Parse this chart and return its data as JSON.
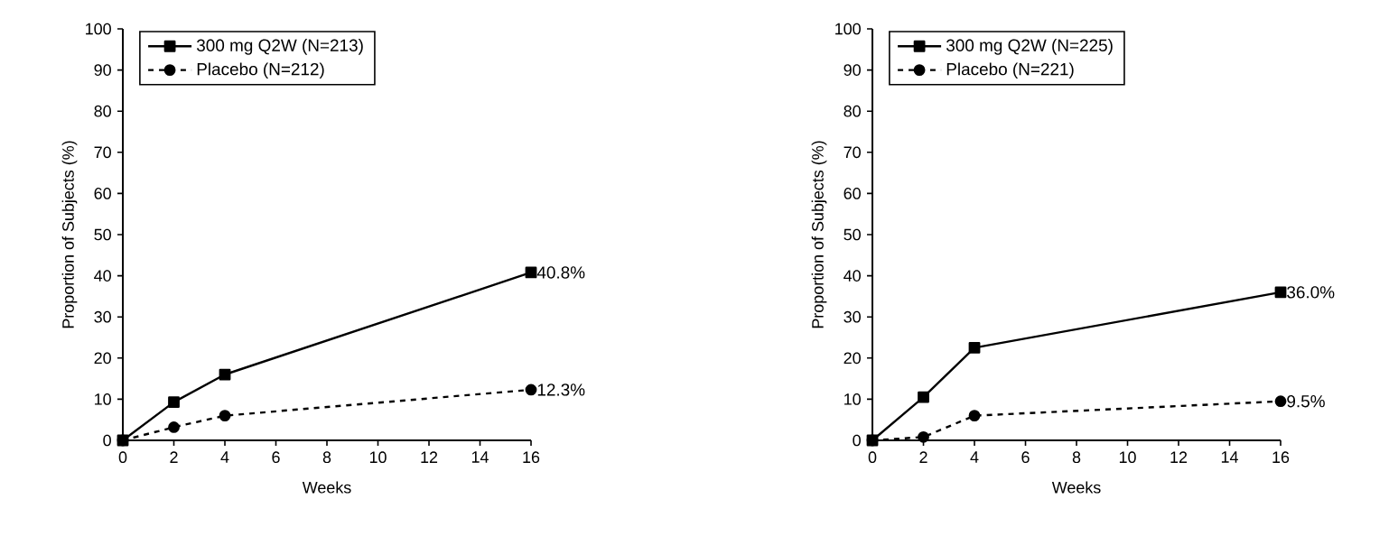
{
  "chart_data": [
    {
      "type": "line",
      "xlabel": "Weeks",
      "ylabel": "Proportion of Subjects (%)",
      "x": [
        0,
        2,
        4,
        16
      ],
      "xlim": [
        0,
        16
      ],
      "xticks": [
        0,
        2,
        4,
        6,
        8,
        10,
        12,
        14,
        16
      ],
      "ylim": [
        0,
        100
      ],
      "yticks": [
        0,
        10,
        20,
        30,
        40,
        50,
        60,
        70,
        80,
        90,
        100
      ],
      "grid": false,
      "legend": "top",
      "series": [
        {
          "name": "300 mg Q2W (N=213)",
          "color": "#000000",
          "marker": "square",
          "line_style": "solid",
          "values": [
            0,
            9.3,
            16,
            40.8
          ],
          "value_labels": [
            null,
            null,
            null,
            "40.8%"
          ]
        },
        {
          "name": "Placebo (N=212)",
          "color": "#000000",
          "marker": "circle",
          "line_style": "dashed",
          "values": [
            0,
            3.2,
            6,
            12.3
          ],
          "value_labels": [
            null,
            null,
            null,
            "12.3%"
          ]
        }
      ]
    },
    {
      "type": "line",
      "xlabel": "Weeks",
      "ylabel": "Proportion of Subjects (%)",
      "x": [
        0,
        2,
        4,
        16
      ],
      "xlim": [
        0,
        16
      ],
      "xticks": [
        0,
        2,
        4,
        6,
        8,
        10,
        12,
        14,
        16
      ],
      "ylim": [
        0,
        100
      ],
      "yticks": [
        0,
        10,
        20,
        30,
        40,
        50,
        60,
        70,
        80,
        90,
        100
      ],
      "grid": false,
      "legend": "top",
      "series": [
        {
          "name": "300 mg Q2W (N=225)",
          "color": "#000000",
          "marker": "square",
          "line_style": "solid",
          "values": [
            0,
            10.5,
            22.5,
            36.0
          ],
          "value_labels": [
            null,
            null,
            null,
            "36.0%"
          ]
        },
        {
          "name": "Placebo (N=221)",
          "color": "#000000",
          "marker": "circle",
          "line_style": "dashed",
          "values": [
            0,
            0.8,
            6,
            9.5
          ],
          "value_labels": [
            null,
            null,
            null,
            "9.5%"
          ]
        }
      ]
    }
  ]
}
